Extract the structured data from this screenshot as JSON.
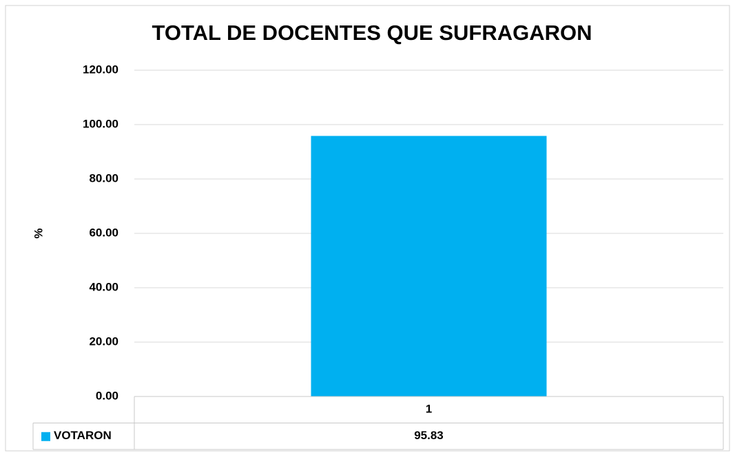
{
  "chart_data": {
    "type": "bar",
    "title": "TOTAL DE DOCENTES QUE SUFRAGARON",
    "y_label": "%",
    "categories": [
      "1"
    ],
    "series": [
      {
        "name": "VOTARON",
        "color": "#00b0f0",
        "values": [
          95.83
        ]
      }
    ],
    "ylim": [
      0,
      120
    ],
    "yticks": [
      {
        "value": 0,
        "label": "0.00"
      },
      {
        "value": 20,
        "label": "20.00"
      },
      {
        "value": 40,
        "label": "40.00"
      },
      {
        "value": 60,
        "label": "60.00"
      },
      {
        "value": 80,
        "label": "80.00"
      },
      {
        "value": 100,
        "label": "100.00"
      },
      {
        "value": 120,
        "label": "120.00"
      }
    ],
    "grid": true,
    "data_table": true
  }
}
